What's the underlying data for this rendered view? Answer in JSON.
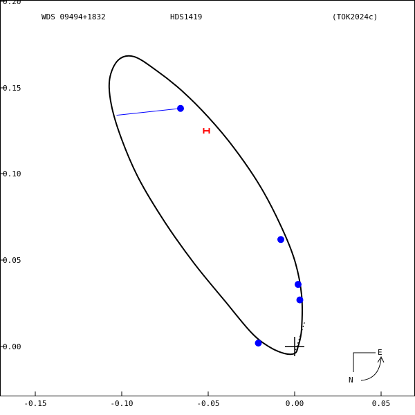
{
  "chart_data": {
    "type": "scatter",
    "header": {
      "left": "WDS 09494+1832",
      "center": "HDS1419",
      "right": "(TOK2024c)"
    },
    "compass": {
      "east": "E",
      "north": "N"
    },
    "xlim": [
      -0.15,
      0.05
    ],
    "ylim": [
      -0.02,
      0.2
    ],
    "x_ticks": [
      {
        "value": -0.15,
        "label": "-0.15"
      },
      {
        "value": -0.1,
        "label": "-0.10"
      },
      {
        "value": -0.05,
        "label": "-0.05"
      },
      {
        "value": 0.0,
        "label": "0.00"
      },
      {
        "value": 0.05,
        "label": "0.05"
      }
    ],
    "y_ticks": [
      {
        "value": 0.0,
        "label": "0.00"
      },
      {
        "value": 0.05,
        "label": "0.05"
      },
      {
        "value": 0.1,
        "label": "0.10"
      },
      {
        "value": 0.15,
        "label": "0.15"
      },
      {
        "value": 0.2,
        "label": "0.20"
      }
    ],
    "orbit": [
      [
        0.002,
        0.0
      ],
      [
        0.004,
        0.01
      ],
      [
        0.004,
        0.03
      ],
      [
        0.0,
        0.05
      ],
      [
        -0.008,
        0.07
      ],
      [
        -0.02,
        0.093
      ],
      [
        -0.035,
        0.115
      ],
      [
        -0.05,
        0.133
      ],
      [
        -0.065,
        0.148
      ],
      [
        -0.08,
        0.16
      ],
      [
        -0.093,
        0.168
      ],
      [
        -0.102,
        0.166
      ],
      [
        -0.107,
        0.155
      ],
      [
        -0.106,
        0.14
      ],
      [
        -0.1,
        0.12
      ],
      [
        -0.09,
        0.097
      ],
      [
        -0.075,
        0.072
      ],
      [
        -0.058,
        0.048
      ],
      [
        -0.04,
        0.026
      ],
      [
        -0.025,
        0.008
      ],
      [
        -0.015,
        0.0
      ],
      [
        -0.006,
        -0.004
      ],
      [
        0.0,
        -0.004
      ]
    ],
    "node_line": [
      [
        0.0,
        -0.004
      ],
      [
        0.006,
        0.015
      ]
    ],
    "primary": {
      "x": 0.0,
      "y": 0.0
    },
    "measurements": [
      {
        "x": -0.066,
        "y": 0.138,
        "orbit_x": -0.103,
        "orbit_y": 0.134
      },
      {
        "x": -0.008,
        "y": 0.062,
        "orbit_x": -0.008,
        "orbit_y": 0.062
      },
      {
        "x": 0.002,
        "y": 0.036,
        "orbit_x": 0.002,
        "orbit_y": 0.036
      },
      {
        "x": 0.003,
        "y": 0.027,
        "orbit_x": 0.003,
        "orbit_y": 0.027
      },
      {
        "x": -0.021,
        "y": 0.002,
        "orbit_x": -0.021,
        "orbit_y": 0.002
      }
    ],
    "highlight": {
      "x": -0.051,
      "y": 0.125
    },
    "colors": {
      "orbit": "#000000",
      "measurement": "#0000ff",
      "residual": "#0000ff",
      "highlight": "#ff0000",
      "frame": "#000000"
    }
  }
}
